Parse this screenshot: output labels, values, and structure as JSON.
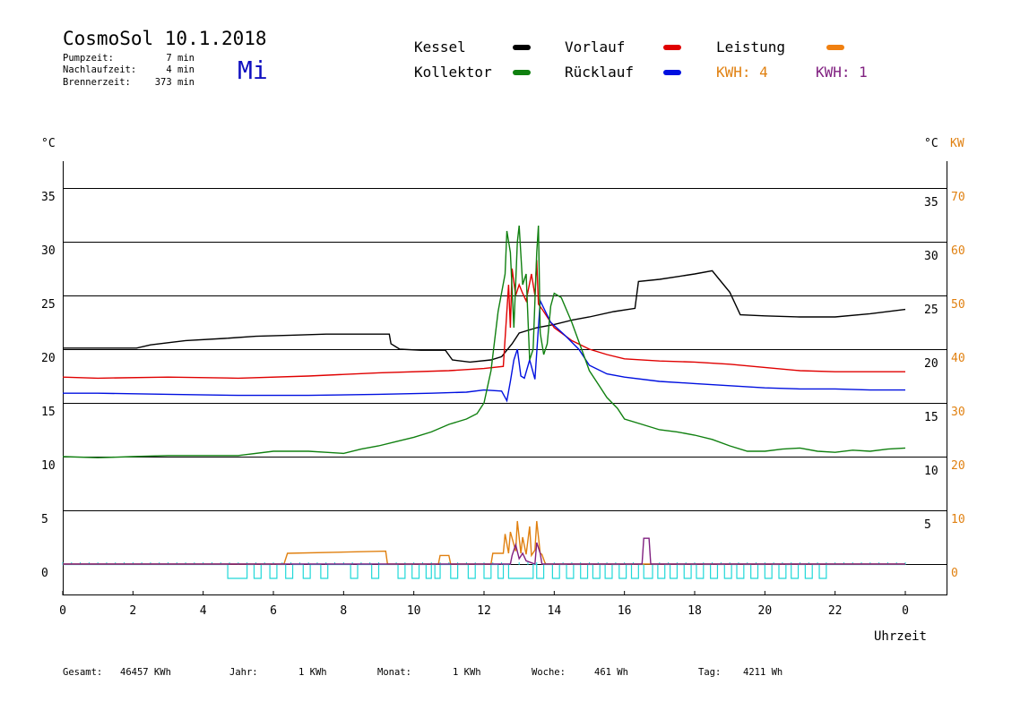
{
  "header": {
    "title": "CosmoSol 10.1.2018",
    "day": "Mi",
    "stats": [
      {
        "label": "Pumpzeit:",
        "value": "7 min"
      },
      {
        "label": "Nachlaufzeit:",
        "value": "4 min"
      },
      {
        "label": "Brennerzeit:",
        "value": "373 min"
      }
    ]
  },
  "legend": {
    "entries": [
      {
        "label": "Kessel",
        "color": "#000000"
      },
      {
        "label": "Vorlauf",
        "color": "#e00000"
      },
      {
        "label": "Leistung",
        "color": "#f08010"
      },
      {
        "label": "Kollektor",
        "color": "#108010"
      },
      {
        "label": "Rücklauf",
        "color": "#0010e0"
      }
    ],
    "kwh": [
      {
        "label": "KWH: 4",
        "color": "#e08010"
      },
      {
        "label": "KWH: 1",
        "color": "#802080"
      }
    ]
  },
  "footer": [
    {
      "label": "Gesamt:",
      "value": "46457 KWh"
    },
    {
      "label": "Jahr:",
      "value": "1 KWh"
    },
    {
      "label": "Monat:",
      "value": "1 KWh"
    },
    {
      "label": "Woche:",
      "value": "461 Wh"
    },
    {
      "label": "Tag:",
      "value": "4211 Wh"
    }
  ],
  "chart_data": {
    "type": "line",
    "xlabel": "Uhrzeit",
    "ylabel_left": "°C",
    "ylabel_right": "°C",
    "ylabel_right2": "KW",
    "xlim": [
      0,
      24
    ],
    "ylim": [
      0,
      35
    ],
    "x_ticks": [
      "0",
      "2",
      "4",
      "6",
      "8",
      "10",
      "12",
      "14",
      "16",
      "18",
      "20",
      "22",
      "0"
    ],
    "y_ticks_left": [
      0,
      5,
      10,
      15,
      20,
      25,
      30,
      35
    ],
    "y_ticks_right": [
      5,
      10,
      15,
      20,
      25,
      30,
      35
    ],
    "y_ticks_kw": [
      0,
      10,
      20,
      30,
      40,
      50,
      60,
      70
    ],
    "grid": true,
    "series": [
      {
        "name": "Kessel",
        "color": "#000000",
        "x": [
          0,
          2.1,
          2.5,
          3.5,
          4.6,
          5.5,
          6.5,
          7.5,
          8.5,
          9.3,
          9.35,
          9.6,
          10.2,
          10.9,
          11.1,
          11.6,
          12.2,
          12.5,
          12.8,
          13.0,
          13.5,
          14.0,
          14.5,
          15.0,
          15.7,
          16.3,
          16.4,
          17.0,
          17.6,
          18.0,
          18.5,
          18.7,
          19.0,
          19.3,
          20.0,
          21.0,
          22.0,
          23.0,
          24.0
        ],
        "y": [
          20.1,
          20.1,
          20.4,
          20.8,
          21.0,
          21.2,
          21.3,
          21.4,
          21.4,
          21.4,
          20.5,
          20.0,
          19.9,
          19.9,
          19.0,
          18.8,
          19.0,
          19.3,
          20.5,
          21.5,
          22.0,
          22.3,
          22.7,
          23.0,
          23.5,
          23.8,
          26.3,
          26.5,
          26.8,
          27.0,
          27.3,
          26.5,
          25.3,
          23.2,
          23.1,
          23.0,
          23.0,
          23.3,
          23.7
        ]
      },
      {
        "name": "Vorlauf",
        "color": "#e00000",
        "x": [
          0,
          1.0,
          3.0,
          5.0,
          7.0,
          9.0,
          11.0,
          12.0,
          12.55,
          12.7,
          12.75,
          12.8,
          12.9,
          13.0,
          13.1,
          13.2,
          13.35,
          13.45,
          13.5,
          13.55,
          13.7,
          14.0,
          14.5,
          15.0,
          15.5,
          16.0,
          17.0,
          18.0,
          19.0,
          20.0,
          21.0,
          22.0,
          23.0,
          24.0
        ],
        "y": [
          17.4,
          17.3,
          17.4,
          17.3,
          17.5,
          17.8,
          18.0,
          18.2,
          18.4,
          26.0,
          22.0,
          27.5,
          25.0,
          26.0,
          25.2,
          24.5,
          27.0,
          25.0,
          28.3,
          24.2,
          23.5,
          22.0,
          20.8,
          20.0,
          19.5,
          19.1,
          18.9,
          18.8,
          18.6,
          18.3,
          18.0,
          17.9,
          17.9,
          17.9
        ]
      },
      {
        "name": "Rücklauf",
        "color": "#0010e0",
        "x": [
          0,
          1.0,
          3.0,
          5.0,
          7.0,
          9.0,
          10.5,
          11.5,
          12.0,
          12.5,
          12.65,
          12.75,
          12.85,
          12.95,
          13.05,
          13.15,
          13.3,
          13.45,
          13.6,
          13.9,
          14.3,
          14.7,
          15.0,
          15.5,
          16.0,
          17.0,
          18.0,
          19.0,
          20.0,
          21.0,
          22.0,
          23.0,
          24.0
        ],
        "y": [
          15.9,
          15.9,
          15.8,
          15.7,
          15.7,
          15.8,
          15.9,
          16.0,
          16.2,
          16.1,
          15.2,
          17.0,
          19.0,
          20.0,
          17.5,
          17.3,
          19.0,
          17.2,
          24.5,
          22.5,
          21.3,
          20.0,
          18.5,
          17.7,
          17.4,
          17.0,
          16.8,
          16.6,
          16.4,
          16.3,
          16.3,
          16.2,
          16.2
        ]
      },
      {
        "name": "Kollektor",
        "color": "#108010",
        "x": [
          0,
          1.0,
          2.0,
          3.0,
          4.0,
          5.0,
          6.0,
          7.0,
          7.5,
          8.0,
          8.5,
          9.0,
          9.5,
          10.0,
          10.5,
          11.0,
          11.5,
          11.8,
          12.0,
          12.2,
          12.4,
          12.6,
          12.65,
          12.75,
          12.85,
          12.95,
          13.0,
          13.1,
          13.2,
          13.3,
          13.4,
          13.5,
          13.55,
          13.6,
          13.7,
          13.8,
          13.9,
          14.0,
          14.2,
          14.5,
          14.8,
          15.0,
          15.3,
          15.5,
          15.8,
          16.0,
          16.5,
          17.0,
          17.5,
          18.0,
          18.5,
          19.0,
          19.5,
          20.0,
          20.5,
          21.0,
          21.5,
          22.0,
          22.5,
          23.0,
          23.5,
          24.0
        ],
        "y": [
          10.0,
          9.9,
          10.0,
          10.1,
          10.1,
          10.1,
          10.5,
          10.5,
          10.4,
          10.3,
          10.7,
          11.0,
          11.4,
          11.8,
          12.3,
          13.0,
          13.5,
          14.0,
          15.0,
          18.0,
          23.5,
          27.0,
          31.0,
          29.0,
          22.0,
          30.0,
          31.5,
          26.0,
          27.0,
          19.0,
          20.0,
          29.0,
          31.5,
          21.5,
          19.5,
          20.5,
          24.0,
          25.2,
          24.8,
          22.5,
          19.8,
          18.0,
          16.5,
          15.5,
          14.5,
          13.5,
          13.0,
          12.5,
          12.3,
          12.0,
          11.6,
          11.0,
          10.5,
          10.5,
          10.7,
          10.8,
          10.5,
          10.4,
          10.6,
          10.5,
          10.7,
          10.8
        ]
      },
      {
        "name": "Leistung",
        "color": "#e08010",
        "x": [
          0,
          6.3,
          6.4,
          9.2,
          9.25,
          10.7,
          10.75,
          11.0,
          11.05,
          12.2,
          12.25,
          12.55,
          12.6,
          12.7,
          12.75,
          12.9,
          12.95,
          13.05,
          13.1,
          13.2,
          13.3,
          13.35,
          13.45,
          13.5,
          13.6,
          13.65,
          13.75,
          24.0
        ],
        "y": [
          0,
          0,
          1.0,
          1.2,
          0,
          0,
          0.8,
          0.8,
          0,
          0,
          1.0,
          1.0,
          2.8,
          1.0,
          3.0,
          1.2,
          4.0,
          1.0,
          2.5,
          0.9,
          3.5,
          0.8,
          1.3,
          4.0,
          1.0,
          0.9,
          0,
          0
        ]
      },
      {
        "name": "",
        "color": "#802080",
        "x": [
          0,
          12.75,
          12.8,
          12.9,
          13.0,
          13.1,
          13.2,
          13.45,
          13.5,
          13.6,
          13.65,
          16.5,
          16.55,
          16.7,
          16.75,
          24.0
        ],
        "y": [
          0,
          0,
          0.8,
          1.8,
          0.5,
          1.0,
          0.3,
          0,
          2.0,
          1.0,
          0,
          0,
          2.4,
          2.4,
          0,
          0
        ]
      }
    ],
    "pump_intervals": [
      [
        4.7,
        5.25
      ],
      [
        5.45,
        5.65
      ],
      [
        5.9,
        6.1
      ],
      [
        6.35,
        6.55
      ],
      [
        6.85,
        7.05
      ],
      [
        7.35,
        7.55
      ],
      [
        8.2,
        8.4
      ],
      [
        8.8,
        9.0
      ],
      [
        9.55,
        9.75
      ],
      [
        9.95,
        10.15
      ],
      [
        10.35,
        10.5
      ],
      [
        10.6,
        10.75
      ],
      [
        11.05,
        11.25
      ],
      [
        11.55,
        11.75
      ],
      [
        12.0,
        12.2
      ],
      [
        12.4,
        12.55
      ],
      [
        12.7,
        13.4
      ],
      [
        13.5,
        13.7
      ],
      [
        13.95,
        14.15
      ],
      [
        14.35,
        14.55
      ],
      [
        14.75,
        14.95
      ],
      [
        15.1,
        15.3
      ],
      [
        15.45,
        15.65
      ],
      [
        15.85,
        16.05
      ],
      [
        16.2,
        16.4
      ],
      [
        16.55,
        16.8
      ],
      [
        16.95,
        17.15
      ],
      [
        17.3,
        17.5
      ],
      [
        17.7,
        17.9
      ],
      [
        18.05,
        18.25
      ],
      [
        18.45,
        18.65
      ],
      [
        18.85,
        19.05
      ],
      [
        19.2,
        19.4
      ],
      [
        19.6,
        19.8
      ],
      [
        20.0,
        20.2
      ],
      [
        20.4,
        20.6
      ],
      [
        20.75,
        20.95
      ],
      [
        21.15,
        21.35
      ],
      [
        21.55,
        21.75
      ]
    ]
  }
}
